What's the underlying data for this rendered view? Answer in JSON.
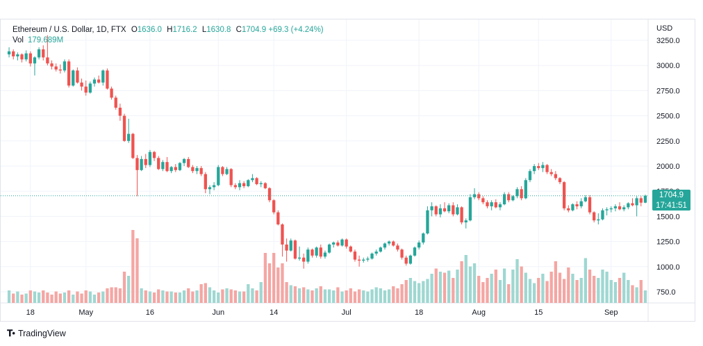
{
  "legend": {
    "symbol": "Ethereum / U.S. Dollar, 1D, FTX",
    "open_label": "O",
    "open": "1636.0",
    "high_label": "H",
    "high": "1716.2",
    "low_label": "L",
    "low": "1630.8",
    "close_label": "C",
    "close": "1704.9",
    "change": "+69.3 (+4.24%)",
    "vol_label": "Vol",
    "vol_value": "179.689M"
  },
  "price_axis": {
    "currency": "USD"
  },
  "price_badge": {
    "price": "1704.9",
    "countdown": "17:41:51"
  },
  "watermark": {
    "logo_text": "TradingView"
  },
  "colors": {
    "up": "#26a69a",
    "down": "#ef5350",
    "up_vol": "#9fd7d1",
    "down_vol": "#f4a6a3",
    "grid": "#f0f3fa"
  },
  "chart_data": {
    "type": "candlestick",
    "title": "Ethereum / U.S. Dollar, 1D, FTX",
    "ylabel": "USD",
    "ylim": [
      620,
      3330
    ],
    "yticks": [
      750,
      1000,
      1250,
      1500,
      1750,
      2000,
      2250,
      2500,
      2750,
      3000,
      3250
    ],
    "ytick_labels": [
      "750.0",
      "1000.0",
      "1250.0",
      "1500.0",
      "1750.0",
      "2000.0",
      "2250.0",
      "2500.0",
      "2750.0",
      "3000.0",
      "3250.0"
    ],
    "xticks": [
      {
        "label": "18",
        "index": 5
      },
      {
        "label": "May",
        "index": 18
      },
      {
        "label": "16",
        "index": 33
      },
      {
        "label": "Jun",
        "index": 49
      },
      {
        "label": "14",
        "index": 62
      },
      {
        "label": "Jul",
        "index": 79
      },
      {
        "label": "18",
        "index": 96
      },
      {
        "label": "Aug",
        "index": 110
      },
      {
        "label": "15",
        "index": 124
      },
      {
        "label": "Sep",
        "index": 141
      }
    ],
    "grid": true,
    "last_price": 1704.9,
    "candles": [
      {
        "o": 3110,
        "h": 3180,
        "l": 3080,
        "c": 3140
      },
      {
        "o": 3140,
        "h": 3160,
        "l": 3060,
        "c": 3090
      },
      {
        "o": 3090,
        "h": 3130,
        "l": 3050,
        "c": 3110
      },
      {
        "o": 3110,
        "h": 3120,
        "l": 3030,
        "c": 3060
      },
      {
        "o": 3060,
        "h": 3150,
        "l": 3040,
        "c": 3120
      },
      {
        "o": 3120,
        "h": 3140,
        "l": 2990,
        "c": 3020
      },
      {
        "o": 3020,
        "h": 3090,
        "l": 2900,
        "c": 3080
      },
      {
        "o": 3080,
        "h": 3180,
        "l": 3060,
        "c": 3160
      },
      {
        "o": 3160,
        "h": 3200,
        "l": 3050,
        "c": 3080
      },
      {
        "o": 3080,
        "h": 3300,
        "l": 3000,
        "c": 3020
      },
      {
        "o": 3020,
        "h": 3050,
        "l": 2960,
        "c": 2990
      },
      {
        "o": 2990,
        "h": 3020,
        "l": 2940,
        "c": 2960
      },
      {
        "o": 2960,
        "h": 3010,
        "l": 2920,
        "c": 2950
      },
      {
        "o": 2950,
        "h": 3060,
        "l": 2930,
        "c": 3040
      },
      {
        "o": 3040,
        "h": 3060,
        "l": 2780,
        "c": 2800
      },
      {
        "o": 2800,
        "h": 2960,
        "l": 2790,
        "c": 2950
      },
      {
        "o": 2950,
        "h": 2980,
        "l": 2820,
        "c": 2830
      },
      {
        "o": 2830,
        "h": 2870,
        "l": 2750,
        "c": 2790
      },
      {
        "o": 2790,
        "h": 2850,
        "l": 2700,
        "c": 2730
      },
      {
        "o": 2730,
        "h": 2840,
        "l": 2720,
        "c": 2820
      },
      {
        "o": 2820,
        "h": 2880,
        "l": 2790,
        "c": 2860
      },
      {
        "o": 2860,
        "h": 2900,
        "l": 2820,
        "c": 2830
      },
      {
        "o": 2830,
        "h": 2960,
        "l": 2800,
        "c": 2950
      },
      {
        "o": 2950,
        "h": 2970,
        "l": 2760,
        "c": 2770
      },
      {
        "o": 2770,
        "h": 2790,
        "l": 2660,
        "c": 2680
      },
      {
        "o": 2680,
        "h": 2700,
        "l": 2560,
        "c": 2580
      },
      {
        "o": 2580,
        "h": 2620,
        "l": 2450,
        "c": 2500
      },
      {
        "o": 2500,
        "h": 2520,
        "l": 2240,
        "c": 2250
      },
      {
        "o": 2250,
        "h": 2470,
        "l": 2230,
        "c": 2320
      },
      {
        "o": 2320,
        "h": 2330,
        "l": 2070,
        "c": 2080
      },
      {
        "o": 2080,
        "h": 2110,
        "l": 1700,
        "c": 1960
      },
      {
        "o": 1960,
        "h": 2100,
        "l": 1950,
        "c": 2070
      },
      {
        "o": 2070,
        "h": 2120,
        "l": 1980,
        "c": 2010
      },
      {
        "o": 2010,
        "h": 2160,
        "l": 1990,
        "c": 2140
      },
      {
        "o": 2140,
        "h": 2150,
        "l": 2050,
        "c": 2080
      },
      {
        "o": 2080,
        "h": 2100,
        "l": 1960,
        "c": 1970
      },
      {
        "o": 1970,
        "h": 2060,
        "l": 1950,
        "c": 2040
      },
      {
        "o": 2040,
        "h": 2090,
        "l": 1940,
        "c": 1950
      },
      {
        "o": 1950,
        "h": 2000,
        "l": 1930,
        "c": 1990
      },
      {
        "o": 1990,
        "h": 2020,
        "l": 1940,
        "c": 1960
      },
      {
        "o": 1960,
        "h": 2040,
        "l": 1950,
        "c": 2030
      },
      {
        "o": 2030,
        "h": 2080,
        "l": 2000,
        "c": 2070
      },
      {
        "o": 2070,
        "h": 2090,
        "l": 1980,
        "c": 1990
      },
      {
        "o": 1990,
        "h": 2010,
        "l": 1930,
        "c": 1950
      },
      {
        "o": 1950,
        "h": 2000,
        "l": 1920,
        "c": 1980
      },
      {
        "o": 1980,
        "h": 2000,
        "l": 1900,
        "c": 1920
      },
      {
        "o": 1920,
        "h": 1940,
        "l": 1730,
        "c": 1770
      },
      {
        "o": 1770,
        "h": 1810,
        "l": 1720,
        "c": 1790
      },
      {
        "o": 1790,
        "h": 1840,
        "l": 1760,
        "c": 1810
      },
      {
        "o": 1810,
        "h": 2010,
        "l": 1800,
        "c": 1990
      },
      {
        "o": 1990,
        "h": 2000,
        "l": 1900,
        "c": 1920
      },
      {
        "o": 1920,
        "h": 1990,
        "l": 1910,
        "c": 1970
      },
      {
        "o": 1970,
        "h": 1980,
        "l": 1790,
        "c": 1810
      },
      {
        "o": 1810,
        "h": 1830,
        "l": 1770,
        "c": 1790
      },
      {
        "o": 1790,
        "h": 1860,
        "l": 1760,
        "c": 1830
      },
      {
        "o": 1830,
        "h": 1850,
        "l": 1780,
        "c": 1800
      },
      {
        "o": 1800,
        "h": 1870,
        "l": 1790,
        "c": 1860
      },
      {
        "o": 1860,
        "h": 1920,
        "l": 1840,
        "c": 1880
      },
      {
        "o": 1880,
        "h": 1890,
        "l": 1810,
        "c": 1820
      },
      {
        "o": 1820,
        "h": 1850,
        "l": 1790,
        "c": 1830
      },
      {
        "o": 1830,
        "h": 1840,
        "l": 1770,
        "c": 1780
      },
      {
        "o": 1780,
        "h": 1790,
        "l": 1640,
        "c": 1660
      },
      {
        "o": 1660,
        "h": 1670,
        "l": 1520,
        "c": 1540
      },
      {
        "o": 1540,
        "h": 1560,
        "l": 1410,
        "c": 1420
      },
      {
        "o": 1420,
        "h": 1430,
        "l": 1100,
        "c": 1220
      },
      {
        "o": 1220,
        "h": 1280,
        "l": 1050,
        "c": 1160
      },
      {
        "o": 1160,
        "h": 1280,
        "l": 1150,
        "c": 1260
      },
      {
        "o": 1260,
        "h": 1270,
        "l": 1070,
        "c": 1080
      },
      {
        "o": 1080,
        "h": 1200,
        "l": 1060,
        "c": 1090
      },
      {
        "o": 1090,
        "h": 1130,
        "l": 980,
        "c": 1050
      },
      {
        "o": 1050,
        "h": 1190,
        "l": 1030,
        "c": 1170
      },
      {
        "o": 1170,
        "h": 1180,
        "l": 1090,
        "c": 1110
      },
      {
        "o": 1110,
        "h": 1200,
        "l": 1090,
        "c": 1190
      },
      {
        "o": 1190,
        "h": 1220,
        "l": 1080,
        "c": 1100
      },
      {
        "o": 1100,
        "h": 1160,
        "l": 1080,
        "c": 1140
      },
      {
        "o": 1140,
        "h": 1230,
        "l": 1130,
        "c": 1220
      },
      {
        "o": 1220,
        "h": 1250,
        "l": 1190,
        "c": 1240
      },
      {
        "o": 1240,
        "h": 1260,
        "l": 1200,
        "c": 1210
      },
      {
        "o": 1210,
        "h": 1280,
        "l": 1200,
        "c": 1270
      },
      {
        "o": 1270,
        "h": 1280,
        "l": 1180,
        "c": 1200
      },
      {
        "o": 1200,
        "h": 1210,
        "l": 1140,
        "c": 1150
      },
      {
        "o": 1150,
        "h": 1170,
        "l": 1050,
        "c": 1070
      },
      {
        "o": 1070,
        "h": 1110,
        "l": 1000,
        "c": 1060
      },
      {
        "o": 1060,
        "h": 1090,
        "l": 1040,
        "c": 1070
      },
      {
        "o": 1070,
        "h": 1100,
        "l": 1050,
        "c": 1080
      },
      {
        "o": 1080,
        "h": 1140,
        "l": 1070,
        "c": 1130
      },
      {
        "o": 1130,
        "h": 1170,
        "l": 1110,
        "c": 1150
      },
      {
        "o": 1150,
        "h": 1200,
        "l": 1140,
        "c": 1190
      },
      {
        "o": 1190,
        "h": 1240,
        "l": 1170,
        "c": 1230
      },
      {
        "o": 1230,
        "h": 1260,
        "l": 1210,
        "c": 1250
      },
      {
        "o": 1250,
        "h": 1260,
        "l": 1200,
        "c": 1210
      },
      {
        "o": 1210,
        "h": 1230,
        "l": 1150,
        "c": 1170
      },
      {
        "o": 1170,
        "h": 1180,
        "l": 1070,
        "c": 1090
      },
      {
        "o": 1090,
        "h": 1110,
        "l": 1010,
        "c": 1030
      },
      {
        "o": 1030,
        "h": 1120,
        "l": 1020,
        "c": 1110
      },
      {
        "o": 1110,
        "h": 1200,
        "l": 1100,
        "c": 1190
      },
      {
        "o": 1190,
        "h": 1260,
        "l": 1170,
        "c": 1240
      },
      {
        "o": 1240,
        "h": 1340,
        "l": 1220,
        "c": 1330
      },
      {
        "o": 1330,
        "h": 1600,
        "l": 1320,
        "c": 1560
      },
      {
        "o": 1560,
        "h": 1640,
        "l": 1500,
        "c": 1600
      },
      {
        "o": 1600,
        "h": 1610,
        "l": 1500,
        "c": 1520
      },
      {
        "o": 1520,
        "h": 1620,
        "l": 1490,
        "c": 1580
      },
      {
        "o": 1580,
        "h": 1640,
        "l": 1540,
        "c": 1550
      },
      {
        "o": 1550,
        "h": 1630,
        "l": 1530,
        "c": 1610
      },
      {
        "o": 1610,
        "h": 1640,
        "l": 1500,
        "c": 1520
      },
      {
        "o": 1520,
        "h": 1620,
        "l": 1510,
        "c": 1590
      },
      {
        "o": 1590,
        "h": 1600,
        "l": 1420,
        "c": 1440
      },
      {
        "o": 1440,
        "h": 1480,
        "l": 1380,
        "c": 1460
      },
      {
        "o": 1460,
        "h": 1720,
        "l": 1450,
        "c": 1690
      },
      {
        "o": 1690,
        "h": 1780,
        "l": 1670,
        "c": 1720
      },
      {
        "o": 1720,
        "h": 1740,
        "l": 1660,
        "c": 1680
      },
      {
        "o": 1680,
        "h": 1700,
        "l": 1620,
        "c": 1640
      },
      {
        "o": 1640,
        "h": 1660,
        "l": 1580,
        "c": 1600
      },
      {
        "o": 1600,
        "h": 1660,
        "l": 1560,
        "c": 1640
      },
      {
        "o": 1640,
        "h": 1670,
        "l": 1580,
        "c": 1590
      },
      {
        "o": 1590,
        "h": 1640,
        "l": 1560,
        "c": 1620
      },
      {
        "o": 1620,
        "h": 1740,
        "l": 1610,
        "c": 1720
      },
      {
        "o": 1720,
        "h": 1740,
        "l": 1640,
        "c": 1660
      },
      {
        "o": 1660,
        "h": 1710,
        "l": 1650,
        "c": 1700
      },
      {
        "o": 1700,
        "h": 1790,
        "l": 1680,
        "c": 1770
      },
      {
        "o": 1770,
        "h": 1800,
        "l": 1660,
        "c": 1680
      },
      {
        "o": 1680,
        "h": 1880,
        "l": 1670,
        "c": 1860
      },
      {
        "o": 1860,
        "h": 1970,
        "l": 1840,
        "c": 1950
      },
      {
        "o": 1950,
        "h": 2020,
        "l": 1920,
        "c": 2000
      },
      {
        "o": 2000,
        "h": 2030,
        "l": 1960,
        "c": 1980
      },
      {
        "o": 1980,
        "h": 2040,
        "l": 1940,
        "c": 2010
      },
      {
        "o": 2010,
        "h": 2020,
        "l": 1920,
        "c": 1940
      },
      {
        "o": 1940,
        "h": 1970,
        "l": 1900,
        "c": 1920
      },
      {
        "o": 1920,
        "h": 1950,
        "l": 1860,
        "c": 1880
      },
      {
        "o": 1880,
        "h": 1890,
        "l": 1820,
        "c": 1840
      },
      {
        "o": 1840,
        "h": 1850,
        "l": 1560,
        "c": 1580
      },
      {
        "o": 1580,
        "h": 1610,
        "l": 1540,
        "c": 1560
      },
      {
        "o": 1560,
        "h": 1630,
        "l": 1550,
        "c": 1620
      },
      {
        "o": 1620,
        "h": 1650,
        "l": 1570,
        "c": 1600
      },
      {
        "o": 1600,
        "h": 1680,
        "l": 1580,
        "c": 1650
      },
      {
        "o": 1650,
        "h": 1710,
        "l": 1640,
        "c": 1690
      },
      {
        "o": 1690,
        "h": 1710,
        "l": 1520,
        "c": 1540
      },
      {
        "o": 1540,
        "h": 1550,
        "l": 1440,
        "c": 1460
      },
      {
        "o": 1460,
        "h": 1530,
        "l": 1420,
        "c": 1470
      },
      {
        "o": 1470,
        "h": 1580,
        "l": 1460,
        "c": 1560
      },
      {
        "o": 1560,
        "h": 1590,
        "l": 1510,
        "c": 1570
      },
      {
        "o": 1570,
        "h": 1600,
        "l": 1540,
        "c": 1580
      },
      {
        "o": 1580,
        "h": 1620,
        "l": 1550,
        "c": 1600
      },
      {
        "o": 1600,
        "h": 1640,
        "l": 1560,
        "c": 1570
      },
      {
        "o": 1570,
        "h": 1610,
        "l": 1550,
        "c": 1590
      },
      {
        "o": 1590,
        "h": 1640,
        "l": 1570,
        "c": 1630
      },
      {
        "o": 1630,
        "h": 1680,
        "l": 1600,
        "c": 1610
      },
      {
        "o": 1610,
        "h": 1700,
        "l": 1500,
        "c": 1680
      },
      {
        "o": 1680,
        "h": 1700,
        "l": 1600,
        "c": 1636
      },
      {
        "o": 1636,
        "h": 1716,
        "l": 1631,
        "c": 1705
      }
    ],
    "volume_scale_max": 1000,
    "volumes": [
      60,
      45,
      55,
      40,
      45,
      60,
      55,
      50,
      60,
      50,
      40,
      55,
      45,
      50,
      60,
      40,
      55,
      45,
      60,
      55,
      40,
      50,
      55,
      70,
      75,
      75,
      70,
      150,
      130,
      350,
      310,
      70,
      60,
      55,
      50,
      65,
      60,
      55,
      55,
      50,
      50,
      60,
      70,
      55,
      60,
      90,
      95,
      75,
      60,
      50,
      65,
      70,
      65,
      60,
      55,
      55,
      90,
      70,
      60,
      100,
      240,
      190,
      240,
      170,
      190,
      100,
      85,
      80,
      70,
      75,
      65,
      60,
      70,
      80,
      65,
      65,
      60,
      75,
      55,
      60,
      70,
      55,
      65,
      60,
      55,
      65,
      75,
      70,
      60,
      65,
      80,
      70,
      90,
      110,
      120,
      105,
      95,
      105,
      115,
      140,
      165,
      150,
      145,
      155,
      120,
      160,
      200,
      230,
      175,
      190,
      130,
      100,
      120,
      140,
      160,
      110,
      165,
      90,
      160,
      210,
      175,
      145,
      115,
      95,
      120,
      140,
      105,
      150,
      200,
      145,
      115,
      170,
      140,
      110,
      120,
      215,
      160,
      130,
      120,
      160,
      150,
      110,
      100,
      120,
      145,
      110,
      85,
      75,
      110,
      60
    ]
  }
}
